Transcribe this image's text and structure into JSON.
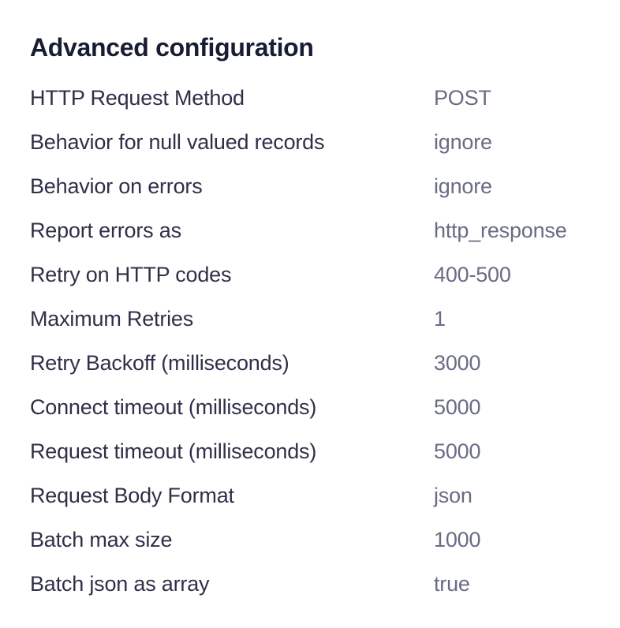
{
  "page": {
    "title": "Advanced configuration"
  },
  "config": {
    "rows": [
      {
        "label": "HTTP Request Method",
        "value": "POST"
      },
      {
        "label": "Behavior for null valued records",
        "value": "ignore"
      },
      {
        "label": "Behavior on errors",
        "value": "ignore"
      },
      {
        "label": "Report errors as",
        "value": "http_response"
      },
      {
        "label": "Retry on HTTP codes",
        "value": "400-500"
      },
      {
        "label": "Maximum Retries",
        "value": "1"
      },
      {
        "label": "Retry Backoff (milliseconds)",
        "value": "3000"
      },
      {
        "label": "Connect timeout (milliseconds)",
        "value": "5000"
      },
      {
        "label": "Request timeout (milliseconds)",
        "value": "5000"
      },
      {
        "label": "Request Body Format",
        "value": "json"
      },
      {
        "label": "Batch max size",
        "value": "1000"
      },
      {
        "label": "Batch json as array",
        "value": "true"
      }
    ]
  },
  "colors": {
    "background": "#ffffff",
    "title": "#191d33",
    "label": "#2f3048",
    "value": "#696c84"
  }
}
